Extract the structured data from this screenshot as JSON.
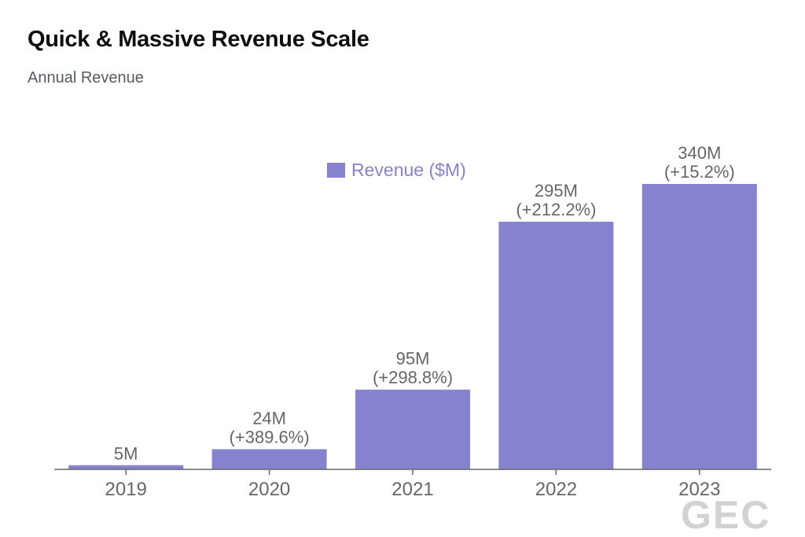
{
  "header": {
    "title": "Quick & Massive Revenue Scale",
    "subtitle": "Annual Revenue"
  },
  "watermark": "GEC",
  "colors": {
    "bar": "#8583cf",
    "legend_text": "#8583cf",
    "axis": "#666666",
    "label": "#666666"
  },
  "chart_data": {
    "type": "bar",
    "title": "Quick & Massive Revenue Scale",
    "subtitle": "Annual Revenue",
    "xlabel": "",
    "ylabel": "",
    "categories": [
      "2019",
      "2020",
      "2021",
      "2022",
      "2023"
    ],
    "series": [
      {
        "name": "Revenue ($M)",
        "values": [
          5,
          24,
          95,
          295,
          340
        ]
      }
    ],
    "data_labels": [
      {
        "value": "5M",
        "growth": ""
      },
      {
        "value": "24M",
        "growth": "(+389.6%)"
      },
      {
        "value": "95M",
        "growth": "(+298.8%)"
      },
      {
        "value": "295M",
        "growth": "(+212.2%)"
      },
      {
        "value": "340M",
        "growth": "(+15.2%)"
      }
    ],
    "ylim": [
      0,
      340
    ],
    "grid": false,
    "y_axis_visible": false,
    "legend": {
      "placement": "top-center",
      "entries": [
        "Revenue ($M)"
      ]
    }
  }
}
